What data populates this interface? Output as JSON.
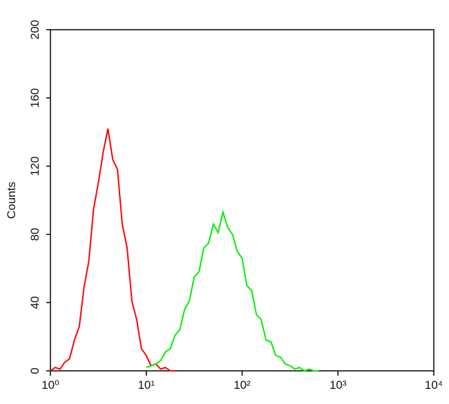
{
  "chart_data": {
    "type": "histogram-line",
    "ylabel": "Counts",
    "xlog": true,
    "xlim": [
      1,
      10000
    ],
    "xticks": [
      {
        "value": 1,
        "label": "10⁰"
      },
      {
        "value": 10,
        "label": "10¹"
      },
      {
        "value": 100,
        "label": "10²"
      },
      {
        "value": 1000,
        "label": "10³"
      },
      {
        "value": 10000,
        "label": "10⁴"
      }
    ],
    "ylim": [
      0,
      200
    ],
    "yticks": [
      0,
      40,
      80,
      120,
      160,
      200
    ],
    "series": [
      {
        "color": "#ff0000",
        "x": [
          1,
          1.12,
          1.26,
          1.41,
          1.58,
          1.78,
          2,
          2.24,
          2.51,
          2.82,
          3.16,
          3.55,
          3.98,
          4.47,
          5.01,
          5.62,
          6.31,
          7.08,
          7.94,
          8.91,
          10,
          11.2,
          12.6,
          14.1,
          15.8,
          17.8,
          20
        ],
        "values": [
          0,
          2,
          1,
          5,
          7,
          18,
          26,
          49,
          64,
          95,
          110,
          128,
          142,
          124,
          118,
          86,
          72,
          41,
          30,
          13,
          9,
          3,
          4,
          1,
          2,
          0,
          0
        ]
      },
      {
        "color": "#00ee00",
        "x": [
          10,
          11.2,
          12.6,
          14.1,
          15.8,
          17.8,
          20,
          22.4,
          25.1,
          28.2,
          31.6,
          35.5,
          39.8,
          44.7,
          50.1,
          56.2,
          63.1,
          70.8,
          79.4,
          89.1,
          100,
          112,
          126,
          141,
          158,
          178,
          200,
          224,
          251,
          282,
          316,
          355,
          398,
          447,
          501,
          562,
          631
        ],
        "values": [
          2,
          3,
          4,
          6,
          11,
          13,
          21,
          24,
          36,
          41,
          55,
          58,
          72,
          75,
          86,
          81,
          93,
          84,
          80,
          70,
          66,
          50,
          47,
          33,
          30,
          18,
          17,
          9,
          8,
          4,
          3,
          1,
          2,
          0,
          1,
          0,
          0
        ]
      }
    ]
  }
}
